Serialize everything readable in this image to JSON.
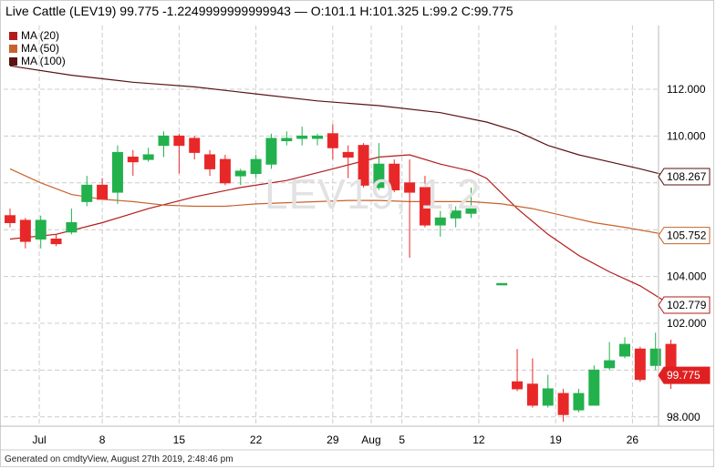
{
  "header": {
    "instrument": "Live Cattle (LEV19)",
    "last": "99.775",
    "change": "-1.2249999999999943",
    "separator": "—",
    "ohlc": "O:101.1 H:101.325 L:99.2 C:99.775"
  },
  "legend": [
    {
      "label": "MA (20)",
      "color": "#b31b1b"
    },
    {
      "label": "MA (50)",
      "color": "#c8622c"
    },
    {
      "label": "MA (100)",
      "color": "#5a1212"
    }
  ],
  "watermark": "LEV19, 1,2",
  "footer": "Generated on cmdtyView, August 27th 2019, 2:48:46 pm",
  "chart_data": {
    "type": "candlestick",
    "ylim": [
      97.7,
      114.0
    ],
    "y_ticks": [
      "112.000",
      "110.000",
      "104.000",
      "102.000",
      "98.000"
    ],
    "x_ticks": [
      "Jul",
      "8",
      "15",
      "22",
      "29",
      "Aug",
      "5",
      "12",
      "19",
      "26"
    ],
    "price_labels": [
      {
        "value": 108.267,
        "text": "108.267",
        "color": "#5a1212",
        "filled": false
      },
      {
        "value": 105.752,
        "text": "105.752",
        "color": "#c8622c",
        "filled": false
      },
      {
        "value": 102.779,
        "text": "102.779",
        "color": "#b31b1b",
        "filled": false
      },
      {
        "value": 99.775,
        "text": "99.775",
        "color": "#e02020",
        "filled": true
      }
    ],
    "colors": {
      "up": "#23b14d",
      "down": "#e82828",
      "grid": "#cccccc"
    },
    "candles": [
      {
        "i": 0,
        "o": 106.6,
        "h": 106.9,
        "l": 106.1,
        "c": 106.3
      },
      {
        "i": 1,
        "o": 106.4,
        "h": 106.5,
        "l": 105.2,
        "c": 105.5
      },
      {
        "i": 2,
        "o": 105.6,
        "h": 106.6,
        "l": 105.2,
        "c": 106.4
      },
      {
        "i": 3,
        "o": 105.6,
        "h": 105.8,
        "l": 105.3,
        "c": 105.4
      },
      {
        "i": 4,
        "o": 105.9,
        "h": 106.9,
        "l": 105.8,
        "c": 106.3
      },
      {
        "i": 5,
        "o": 107.2,
        "h": 108.3,
        "l": 107.0,
        "c": 107.9
      },
      {
        "i": 6,
        "o": 107.9,
        "h": 108.2,
        "l": 107.3,
        "c": 107.3
      },
      {
        "i": 7,
        "o": 107.6,
        "h": 109.6,
        "l": 107.1,
        "c": 109.3
      },
      {
        "i": 8,
        "o": 109.1,
        "h": 109.4,
        "l": 108.3,
        "c": 108.9
      },
      {
        "i": 9,
        "o": 109.0,
        "h": 109.5,
        "l": 108.9,
        "c": 109.2
      },
      {
        "i": 10,
        "o": 109.6,
        "h": 110.2,
        "l": 109.1,
        "c": 110.0
      },
      {
        "i": 11,
        "o": 110.0,
        "h": 110.1,
        "l": 108.4,
        "c": 109.6
      },
      {
        "i": 12,
        "o": 109.9,
        "h": 110.0,
        "l": 109.0,
        "c": 109.3
      },
      {
        "i": 13,
        "o": 109.2,
        "h": 109.4,
        "l": 108.3,
        "c": 108.6
      },
      {
        "i": 14,
        "o": 109.0,
        "h": 109.2,
        "l": 107.9,
        "c": 108.0
      },
      {
        "i": 15,
        "o": 108.3,
        "h": 108.6,
        "l": 107.9,
        "c": 108.5
      },
      {
        "i": 16,
        "o": 108.4,
        "h": 109.2,
        "l": 108.2,
        "c": 109.0
      },
      {
        "i": 17,
        "o": 108.8,
        "h": 110.1,
        "l": 108.6,
        "c": 109.9
      },
      {
        "i": 18,
        "o": 109.8,
        "h": 110.2,
        "l": 109.6,
        "c": 109.9
      },
      {
        "i": 19,
        "o": 109.9,
        "h": 110.4,
        "l": 109.6,
        "c": 110.0
      },
      {
        "i": 20,
        "o": 109.9,
        "h": 110.1,
        "l": 109.6,
        "c": 110.0
      },
      {
        "i": 21,
        "o": 110.1,
        "h": 110.5,
        "l": 109.0,
        "c": 109.5
      },
      {
        "i": 22,
        "o": 109.3,
        "h": 109.6,
        "l": 108.2,
        "c": 109.1
      },
      {
        "i": 23,
        "o": 109.6,
        "h": 109.7,
        "l": 107.8,
        "c": 107.9
      },
      {
        "i": 24,
        "o": 107.8,
        "h": 109.7,
        "l": 107.7,
        "c": 108.8
      },
      {
        "i": 25,
        "o": 108.8,
        "h": 109.0,
        "l": 107.6,
        "c": 107.7
      },
      {
        "i": 26,
        "o": 108.0,
        "h": 109.0,
        "l": 104.8,
        "c": 107.6
      },
      {
        "i": 27,
        "o": 107.8,
        "h": 108.3,
        "l": 106.1,
        "c": 106.2
      },
      {
        "i": 28,
        "o": 106.2,
        "h": 106.8,
        "l": 105.7,
        "c": 106.5
      },
      {
        "i": 29,
        "o": 106.5,
        "h": 107.0,
        "l": 106.1,
        "c": 106.8
      },
      {
        "i": 30,
        "o": 106.7,
        "h": 107.8,
        "l": 106.5,
        "c": 107.0
      },
      {
        "i": 32,
        "o": 103.7,
        "h": 103.7,
        "l": 103.7,
        "c": 103.7
      },
      {
        "i": 33,
        "o": 99.5,
        "h": 100.9,
        "l": 99.1,
        "c": 99.2
      },
      {
        "i": 34,
        "o": 99.4,
        "h": 100.5,
        "l": 98.4,
        "c": 98.5
      },
      {
        "i": 35,
        "o": 98.5,
        "h": 99.8,
        "l": 98.4,
        "c": 99.2
      },
      {
        "i": 36,
        "o": 99.0,
        "h": 99.2,
        "l": 97.8,
        "c": 98.1
      },
      {
        "i": 37,
        "o": 98.3,
        "h": 99.2,
        "l": 98.2,
        "c": 99.0
      },
      {
        "i": 38,
        "o": 98.5,
        "h": 100.2,
        "l": 98.5,
        "c": 100.0
      },
      {
        "i": 39,
        "o": 100.1,
        "h": 101.2,
        "l": 100.0,
        "c": 100.4
      },
      {
        "i": 40,
        "o": 100.6,
        "h": 101.4,
        "l": 100.5,
        "c": 101.1
      },
      {
        "i": 41,
        "o": 100.9,
        "h": 101.0,
        "l": 99.5,
        "c": 99.6
      },
      {
        "i": 42,
        "o": 100.2,
        "h": 101.6,
        "l": 100.0,
        "c": 100.9
      },
      {
        "i": 43,
        "o": 101.1,
        "h": 101.3,
        "l": 99.2,
        "c": 99.8
      }
    ],
    "ma_lines": [
      {
        "name": "MA (20)",
        "color": "#b31b1b",
        "points": [
          [
            0,
            105.6
          ],
          [
            3,
            105.8
          ],
          [
            6,
            106.3
          ],
          [
            9,
            106.9
          ],
          [
            12,
            107.4
          ],
          [
            15,
            107.8
          ],
          [
            18,
            108.1
          ],
          [
            21,
            108.6
          ],
          [
            24,
            109.1
          ],
          [
            26,
            109.2
          ],
          [
            28,
            108.8
          ],
          [
            30,
            108.5
          ],
          [
            31,
            108.2
          ],
          [
            33,
            106.9
          ],
          [
            35,
            105.8
          ],
          [
            37,
            104.9
          ],
          [
            39,
            104.2
          ],
          [
            41,
            103.6
          ],
          [
            43,
            102.78
          ]
        ]
      },
      {
        "name": "MA (50)",
        "color": "#c8622c",
        "points": [
          [
            0,
            108.6
          ],
          [
            2,
            108.0
          ],
          [
            4,
            107.5
          ],
          [
            6,
            107.3
          ],
          [
            8,
            107.2
          ],
          [
            10,
            107.05
          ],
          [
            12,
            107.0
          ],
          [
            14,
            107.0
          ],
          [
            16,
            107.1
          ],
          [
            18,
            107.15
          ],
          [
            20,
            107.2
          ],
          [
            22,
            107.25
          ],
          [
            24,
            107.25
          ],
          [
            26,
            107.2
          ],
          [
            28,
            107.2
          ],
          [
            30,
            107.2
          ],
          [
            32,
            107.1
          ],
          [
            34,
            106.9
          ],
          [
            36,
            106.6
          ],
          [
            38,
            106.3
          ],
          [
            40,
            106.1
          ],
          [
            43,
            105.75
          ]
        ]
      },
      {
        "name": "MA (100)",
        "color": "#5a1212",
        "points": [
          [
            0,
            113.0
          ],
          [
            4,
            112.6
          ],
          [
            8,
            112.3
          ],
          [
            12,
            112.1
          ],
          [
            16,
            111.8
          ],
          [
            20,
            111.5
          ],
          [
            24,
            111.3
          ],
          [
            28,
            111.0
          ],
          [
            31,
            110.6
          ],
          [
            33,
            110.2
          ],
          [
            35,
            109.6
          ],
          [
            37,
            109.2
          ],
          [
            39,
            108.9
          ],
          [
            41,
            108.6
          ],
          [
            43,
            108.27
          ]
        ]
      }
    ]
  }
}
